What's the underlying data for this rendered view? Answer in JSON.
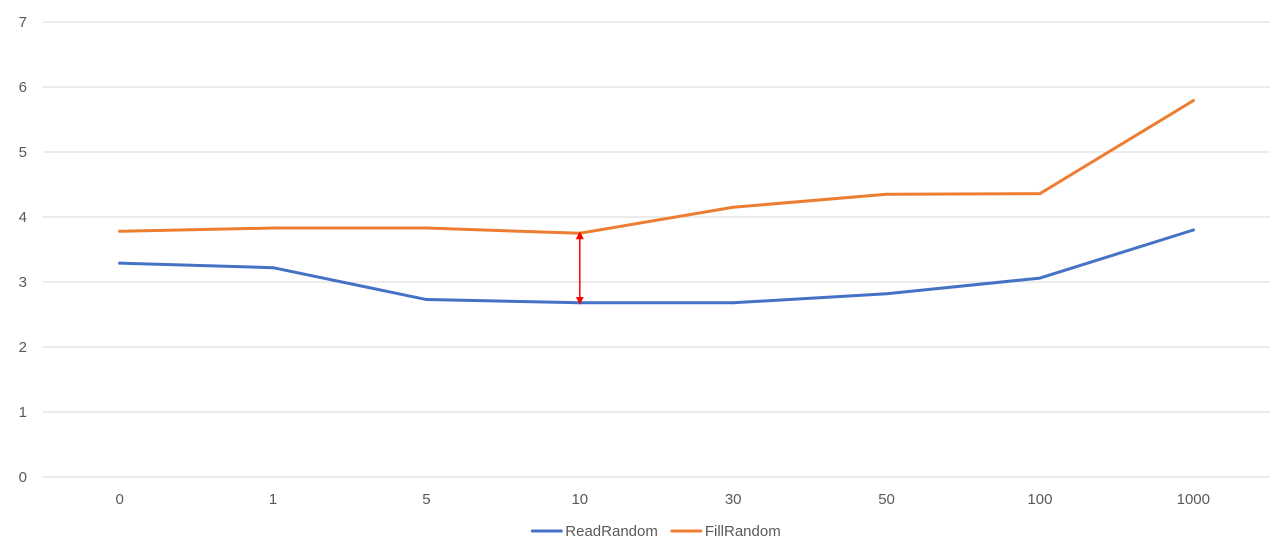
{
  "chart_data": {
    "type": "line",
    "categories": [
      "0",
      "1",
      "5",
      "10",
      "30",
      "50",
      "100",
      "1000"
    ],
    "series": [
      {
        "name": "ReadRandom",
        "color": "#4472C4",
        "values": [
          3.29,
          3.22,
          2.73,
          2.68,
          2.68,
          2.82,
          3.06,
          3.8
        ]
      },
      {
        "name": "FillRandom",
        "color": "#ED7D31",
        "values": [
          3.78,
          3.83,
          3.83,
          3.75,
          4.15,
          4.35,
          4.36,
          5.79
        ]
      }
    ],
    "ylim": [
      0,
      7
    ],
    "yticks": [
      "0",
      "1",
      "2",
      "3",
      "4",
      "5",
      "6",
      "7"
    ],
    "grid": true,
    "legend_position": "bottom",
    "annotation": {
      "type": "double-arrow",
      "category": "10",
      "from": 3.75,
      "to": 2.68,
      "color": "#FF0000"
    }
  }
}
